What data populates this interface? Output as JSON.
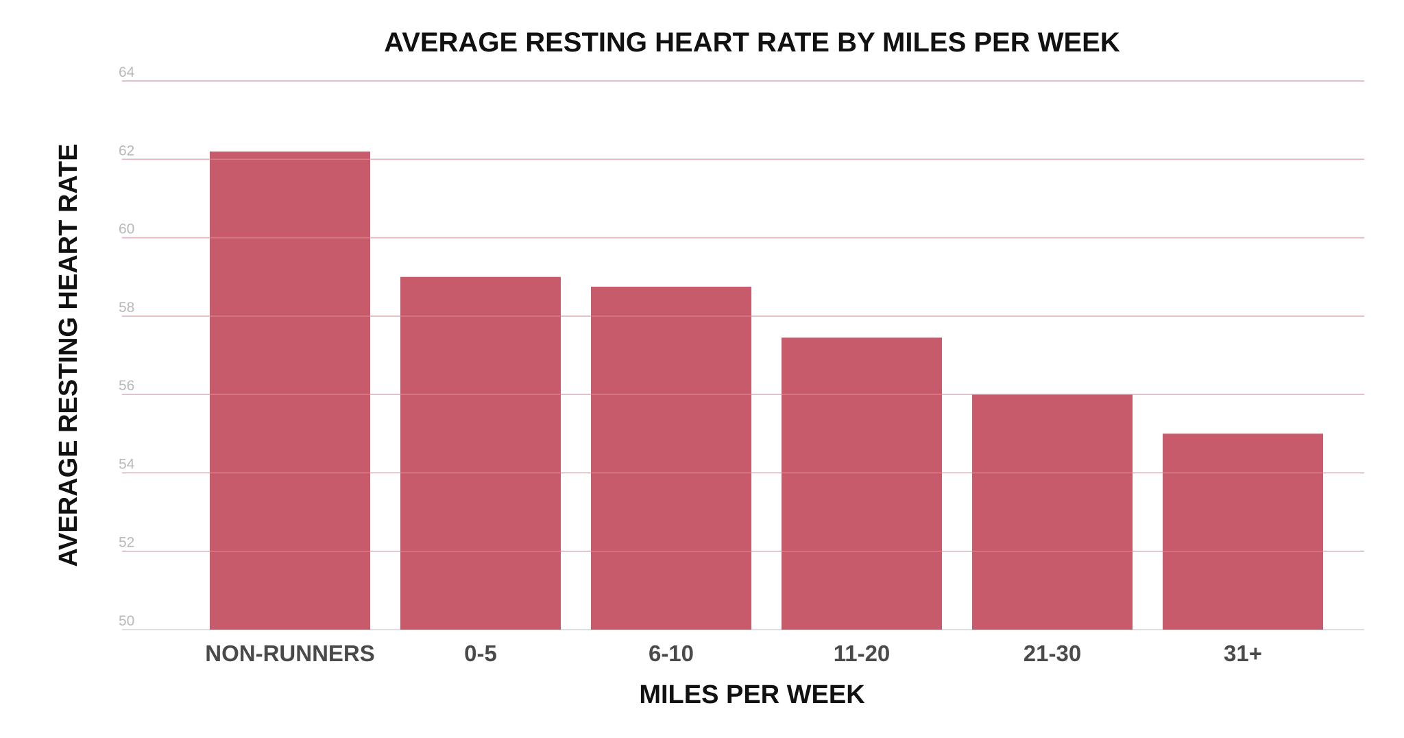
{
  "chart_data": {
    "type": "bar",
    "title": "AVERAGE RESTING HEART RATE BY MILES PER WEEK",
    "xlabel": "MILES PER WEEK",
    "ylabel": "AVERAGE RESTING HEART RATE",
    "categories": [
      "NON-RUNNERS",
      "0-5",
      "6-10",
      "11-20",
      "21-30",
      "31+"
    ],
    "values": [
      62.2,
      59.0,
      58.75,
      57.45,
      56.0,
      55.0
    ],
    "ylim": [
      50,
      64
    ],
    "yticks": [
      "50",
      "52",
      "54",
      "56",
      "58",
      "60",
      "62",
      "64"
    ],
    "grid": true,
    "legend": "none",
    "colors": {
      "bar": "#c75b6b",
      "grid": "#dedede",
      "tick_label": "#b9b9b9",
      "category_label": "#4a4a4a",
      "title": "#111111"
    }
  }
}
